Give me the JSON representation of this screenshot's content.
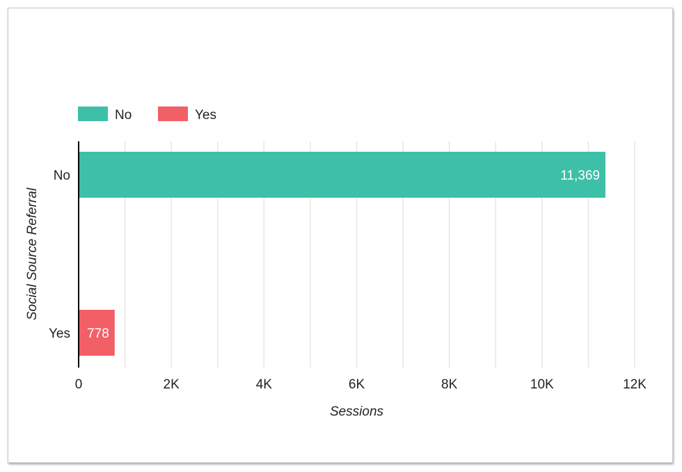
{
  "chart_data": {
    "type": "bar",
    "orientation": "horizontal",
    "categories": [
      "No",
      "Yes"
    ],
    "series": [
      {
        "name": "No",
        "color": "#3ebfa7",
        "values": [
          11369,
          null
        ]
      },
      {
        "name": "Yes",
        "color": "#f25f67",
        "values": [
          null,
          778
        ]
      }
    ],
    "data_labels": [
      "11,369",
      "778"
    ],
    "xlabel": "Sessions",
    "ylabel": "Social Source Referral",
    "xlim": [
      0,
      12000
    ],
    "x_ticks": [
      0,
      2000,
      4000,
      6000,
      8000,
      10000,
      12000
    ],
    "x_tick_labels": [
      "0",
      "2K",
      "4K",
      "6K",
      "8K",
      "10K",
      "12K"
    ],
    "grid": true,
    "legend_position": "top-left"
  }
}
